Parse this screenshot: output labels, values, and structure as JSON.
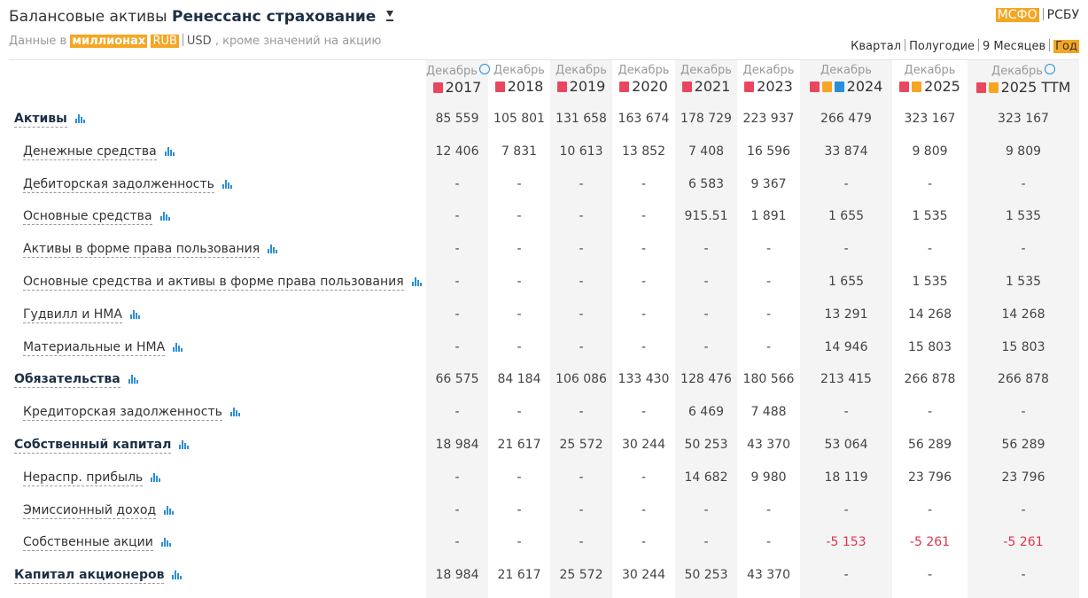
{
  "header": {
    "title": "Балансовые активы",
    "company": "Ренессанс страхование",
    "units_prefix": "Данные в",
    "units": "миллионах",
    "currencies": [
      "RUB",
      "USD"
    ],
    "units_suffix": ", кроме значений на акцию",
    "standards": [
      "МСФО",
      "РСБУ"
    ],
    "active_standard": 0,
    "periods": [
      "Квартал",
      "Полугодие",
      "9 Месяцев",
      "Год"
    ],
    "active_period": 3,
    "active_currency": 0
  },
  "table": {
    "columns": [
      {
        "month": "Декабрь",
        "year": "2017"
      },
      {
        "month": "Декабрь",
        "year": "2018"
      },
      {
        "month": "Декабрь",
        "year": "2019"
      },
      {
        "month": "Декабрь",
        "year": "2020"
      },
      {
        "month": "Декабрь",
        "year": "2021"
      },
      {
        "month": "Декабрь",
        "year": "2023"
      },
      {
        "month": "Декабрь",
        "year": "2024"
      },
      {
        "month": "Декабрь",
        "year": "2025"
      },
      {
        "month": "Декабрь",
        "year": "2025 TTM"
      }
    ],
    "rows": [
      {
        "label": "Активы",
        "bold": true,
        "values": [
          "85 559",
          "105 801",
          "131 658",
          "163 674",
          "178 729",
          "223 937",
          "266 479",
          "323 167",
          "323 167"
        ]
      },
      {
        "label": "Денежные средства",
        "values": [
          "12 406",
          "7 831",
          "10 613",
          "13 852",
          "7 408",
          "16 596",
          "33 874",
          "9 809",
          "9 809"
        ]
      },
      {
        "label": "Дебиторская задолженность",
        "values": [
          "-",
          "-",
          "-",
          "-",
          "6 583",
          "9 367",
          "-",
          "-",
          "-"
        ]
      },
      {
        "label": "Основные средства",
        "values": [
          "-",
          "-",
          "-",
          "-",
          "915.51",
          "1 891",
          "1 655",
          "1 535",
          "1 535"
        ]
      },
      {
        "label": "Активы в форме права пользования",
        "values": [
          "-",
          "-",
          "-",
          "-",
          "-",
          "-",
          "-",
          "-",
          "-"
        ]
      },
      {
        "label": "Основные средства и активы в форме права пользования",
        "values": [
          "-",
          "-",
          "-",
          "-",
          "-",
          "-",
          "1 655",
          "1 535",
          "1 535"
        ]
      },
      {
        "label": "Гудвилл и НМА",
        "values": [
          "-",
          "-",
          "-",
          "-",
          "-",
          "-",
          "13 291",
          "14 268",
          "14 268"
        ]
      },
      {
        "label": "Материальные и НМА",
        "values": [
          "-",
          "-",
          "-",
          "-",
          "-",
          "-",
          "14 946",
          "15 803",
          "15 803"
        ]
      },
      {
        "label": "Обязательства",
        "bold": true,
        "values": [
          "66 575",
          "84 184",
          "106 086",
          "133 430",
          "128 476",
          "180 566",
          "213 415",
          "266 878",
          "266 878"
        ]
      },
      {
        "label": "Кредиторская задолженность",
        "values": [
          "-",
          "-",
          "-",
          "-",
          "6 469",
          "7 488",
          "-",
          "-",
          "-"
        ]
      },
      {
        "label": "Собственный капитал",
        "bold": true,
        "values": [
          "18 984",
          "21 617",
          "25 572",
          "30 244",
          "50 253",
          "43 370",
          "53 064",
          "56 289",
          "56 289"
        ]
      },
      {
        "label": "Нераспр. прибыль",
        "values": [
          "-",
          "-",
          "-",
          "-",
          "14 682",
          "9 980",
          "18 119",
          "23 796",
          "23 796"
        ]
      },
      {
        "label": "Эмиссионный доход",
        "values": [
          "-",
          "-",
          "-",
          "-",
          "-",
          "-",
          "-",
          "-",
          "-"
        ]
      },
      {
        "label": "Собственные акции",
        "values": [
          "-",
          "-",
          "-",
          "-",
          "-",
          "-",
          "-5 153",
          "-5 261",
          "-5 261"
        ]
      },
      {
        "label": "Капитал акционеров",
        "bold": true,
        "values": [
          "18 984",
          "21 617",
          "25 572",
          "30 244",
          "50 253",
          "43 370",
          "-",
          "-",
          "-"
        ]
      }
    ]
  }
}
